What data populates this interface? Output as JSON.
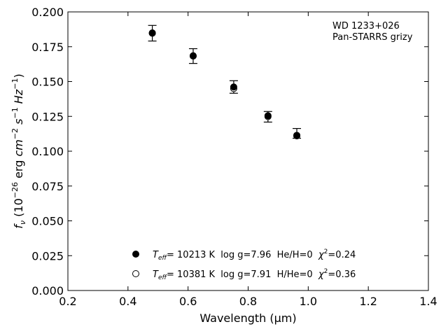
{
  "chart_data": {
    "type": "scatter",
    "title": "",
    "xlabel": "Wavelength",
    "xlabel_unit": "μm",
    "ylabel": {
      "symbol": "f",
      "symbol_sub": "ν",
      "unit_prefix": "10",
      "unit_prefix_exp": "−26",
      "unit_erg": "erg",
      "unit_cm": "cm",
      "unit_cm_exp": "−2",
      "unit_s": "s",
      "unit_s_exp": "−1",
      "unit_hz": "Hz",
      "unit_hz_exp": "−1"
    },
    "xlim": [
      0.2,
      1.4
    ],
    "ylim": [
      0.0,
      0.2
    ],
    "xticks": [
      "0.2",
      "0.4",
      "0.6",
      "0.8",
      "1.0",
      "1.2",
      "1.4"
    ],
    "yticks": [
      "0.000",
      "0.025",
      "0.050",
      "0.075",
      "0.100",
      "0.125",
      "0.150",
      "0.175",
      "0.200"
    ],
    "grid": false,
    "annotation": [
      "WD 1233+026",
      "Pan-STARRS grizy"
    ],
    "annotation_position": "top-right",
    "legend_position": "bottom-center",
    "observed": {
      "x": [
        0.481,
        0.617,
        0.752,
        0.866,
        0.962
      ],
      "y": [
        0.1847,
        0.1683,
        0.1461,
        0.1247,
        0.1128
      ],
      "err": [
        0.0056,
        0.0053,
        0.0045,
        0.0038,
        0.0035
      ]
    },
    "series": [
      {
        "marker": "filled",
        "color": "#000000",
        "label": {
          "teff": "T",
          "teff_sub": "eff",
          "rest": "= 10213 K  log g=7.96  He/H=0  ",
          "chi": "χ",
          "chi_exp": "2",
          "chi_val": "=0.24"
        },
        "x": [
          0.481,
          0.617,
          0.752,
          0.866,
          0.962
        ],
        "y": [
          0.1847,
          0.1683,
          0.1461,
          0.1255,
          0.1114
        ]
      },
      {
        "marker": "open",
        "color": "#000000",
        "label": {
          "teff": "T",
          "teff_sub": "eff",
          "rest": "= 10381 K  log g=7.91  H/He=0  ",
          "chi": "χ",
          "chi_exp": "2",
          "chi_val": "=0.36"
        },
        "x": [
          0.481,
          0.617,
          0.752,
          0.866,
          0.962
        ],
        "y": [
          0.1849,
          0.1685,
          0.145,
          0.1249,
          0.111
        ]
      }
    ]
  }
}
